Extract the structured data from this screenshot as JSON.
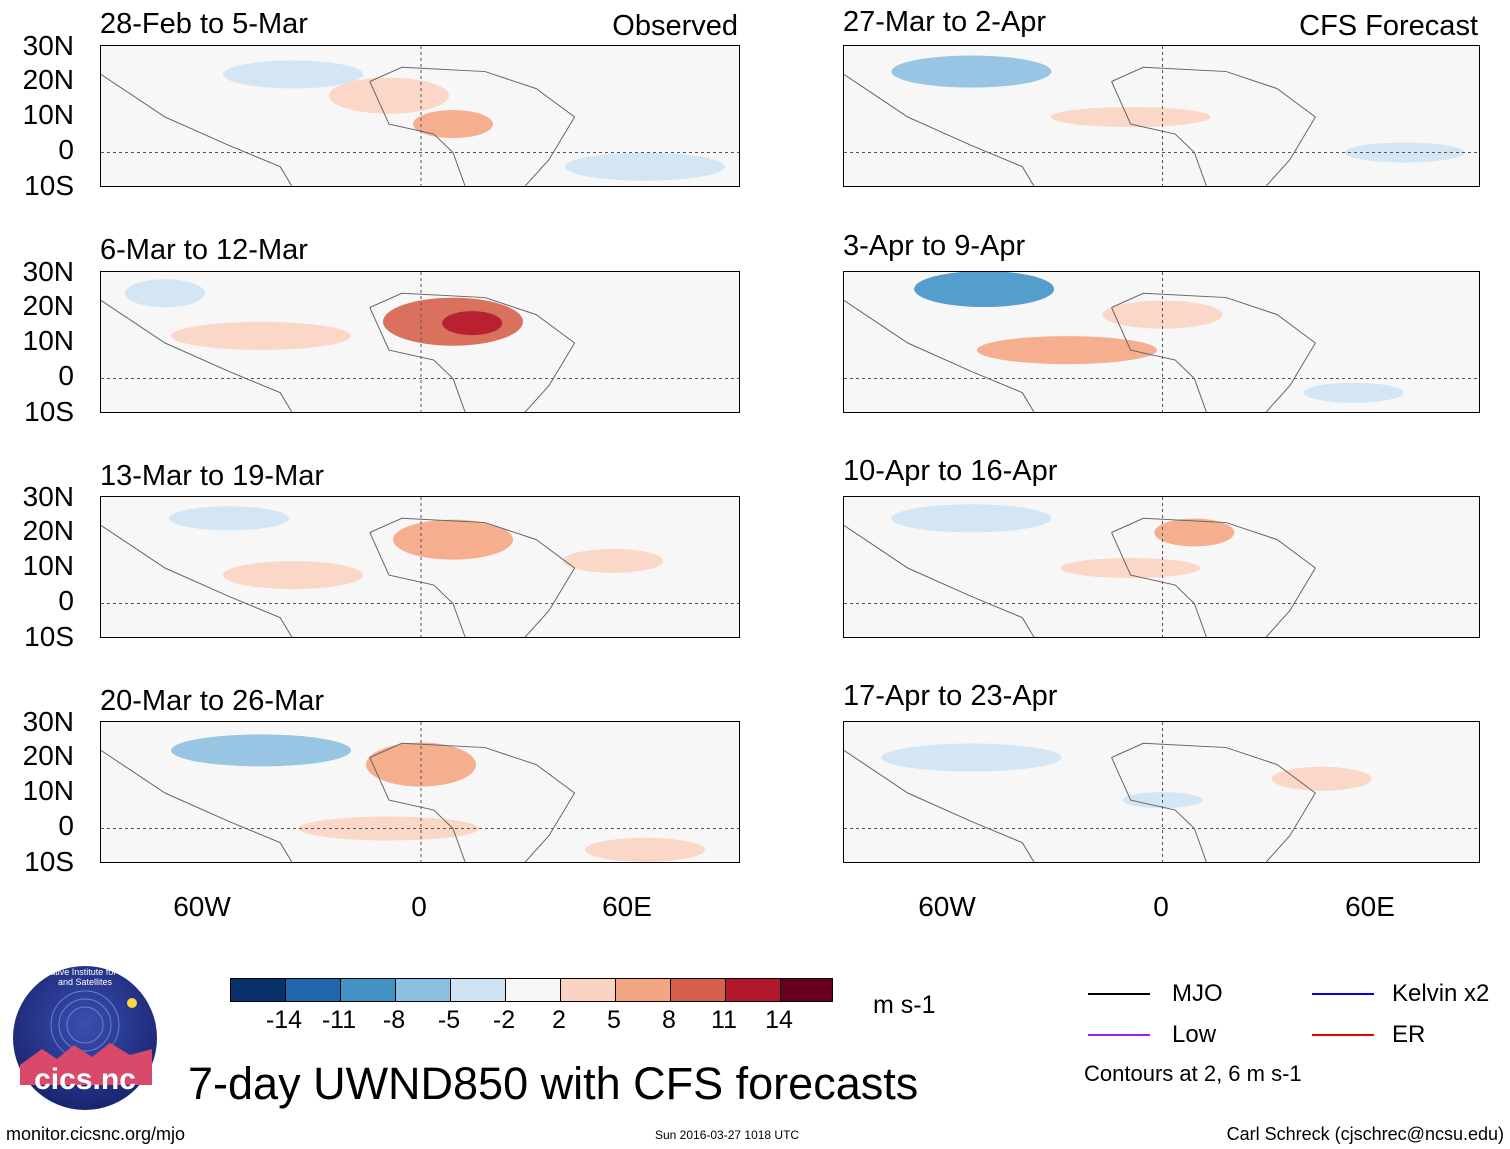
{
  "chart_data": {
    "type": "heatmap",
    "title": "7-day UWND850 with CFS forecasts",
    "variable": "UWND850",
    "units": "m s-1",
    "lat_ticks": [
      "30N",
      "20N",
      "10N",
      "0",
      "10S"
    ],
    "lon_ticks": [
      "60W",
      "0",
      "60E"
    ],
    "lon_range": [
      -90,
      90
    ],
    "lat_range": [
      -10,
      30
    ],
    "observed_label": "Observed",
    "forecast_label": "CFS Forecast",
    "panels_observed": [
      {
        "title": "28-Feb to 5-Mar"
      },
      {
        "title": "6-Mar to 12-Mar"
      },
      {
        "title": "13-Mar to 19-Mar"
      },
      {
        "title": "20-Mar to 26-Mar"
      }
    ],
    "panels_forecast": [
      {
        "title": "27-Mar to 2-Apr"
      },
      {
        "title": "3-Apr to 9-Apr"
      },
      {
        "title": "10-Apr to 16-Apr"
      },
      {
        "title": "17-Apr to 23-Apr"
      }
    ],
    "colorbar": {
      "ticks": [
        "-14",
        "-11",
        "-8",
        "-5",
        "-2",
        "2",
        "5",
        "8",
        "11",
        "14"
      ],
      "colors": [
        "#08306b",
        "#1f67ad",
        "#4292c6",
        "#8cbfe0",
        "#cfe3f2",
        "#f7f7f7",
        "#fbd3c2",
        "#f4a582",
        "#d6604d",
        "#b2182b",
        "#67001f"
      ]
    },
    "legend": [
      {
        "label": "MJO",
        "color": "#000000"
      },
      {
        "label": "Kelvin x2",
        "color": "#0000ee"
      },
      {
        "label": "Low",
        "color": "#a020f0"
      },
      {
        "label": "ER",
        "color": "#ee0000"
      }
    ],
    "contour_note": "Contours at 2, 6 m s-1"
  },
  "footer": {
    "left": "monitor.cicsnc.org/mjo",
    "center": "Sun 2016-03-27 1018 UTC",
    "right": "Carl Schreck (cjschrec@ncsu.edu)"
  },
  "logo": {
    "text": "cics.nc",
    "ring_text": "Cooperative Institute for Climate and Satellites"
  }
}
